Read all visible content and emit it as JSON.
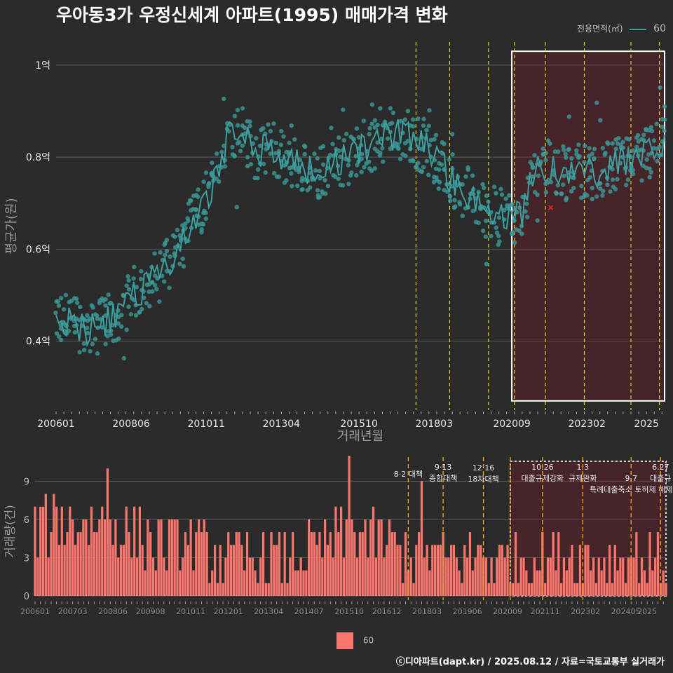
{
  "chart_data": [
    {
      "type": "line",
      "title": "우아동3가 우정신세계 아파트(1995) 매매가격 변화",
      "xlabel": "거래년월",
      "ylabel": "평균가(원)",
      "legend": {
        "title": "전용면적(㎡)",
        "entries": [
          "60"
        ],
        "position": "top-right"
      },
      "x_tick_labels": [
        "200601",
        "200806",
        "201011",
        "201304",
        "201510",
        "201803",
        "202009",
        "202302",
        "2025"
      ],
      "y_tick_labels": [
        "0.4억",
        "0.6억",
        "0.8억",
        "1억"
      ],
      "ylim": [
        0.25,
        1.05
      ],
      "series": [
        {
          "name": "60",
          "color": "#3ba0a0",
          "anchors": [
            [
              "200601",
              0.44
            ],
            [
              "200607",
              0.45
            ],
            [
              "200701",
              0.42
            ],
            [
              "200707",
              0.44
            ],
            [
              "200801",
              0.46
            ],
            [
              "200806",
              0.5
            ],
            [
              "200812",
              0.52
            ],
            [
              "200906",
              0.55
            ],
            [
              "200912",
              0.6
            ],
            [
              "201006",
              0.66
            ],
            [
              "201011",
              0.71
            ],
            [
              "201104",
              0.78
            ],
            [
              "201108",
              0.86
            ],
            [
              "201112",
              0.86
            ],
            [
              "201206",
              0.81
            ],
            [
              "201212",
              0.82
            ],
            [
              "201306",
              0.8
            ],
            [
              "201312",
              0.78
            ],
            [
              "201406",
              0.76
            ],
            [
              "201412",
              0.79
            ],
            [
              "201506",
              0.8
            ],
            [
              "201512",
              0.82
            ],
            [
              "201606",
              0.84
            ],
            [
              "201612",
              0.85
            ],
            [
              "201706",
              0.84
            ],
            [
              "201712",
              0.82
            ],
            [
              "201806",
              0.78
            ],
            [
              "201812",
              0.74
            ],
            [
              "201906",
              0.71
            ],
            [
              "201912",
              0.68
            ],
            [
              "202006",
              0.67
            ],
            [
              "202009",
              0.67
            ],
            [
              "202101",
              0.68
            ],
            [
              "202106",
              0.77
            ],
            [
              "202112",
              0.78
            ],
            [
              "202206",
              0.76
            ],
            [
              "202212",
              0.77
            ],
            [
              "202306",
              0.76
            ],
            [
              "202312",
              0.78
            ],
            [
              "202406",
              0.79
            ],
            [
              "202412",
              0.8
            ],
            [
              "202506",
              0.82
            ],
            [
              "202508",
              0.86
            ]
          ]
        }
      ],
      "highlight": {
        "from": "202009",
        "to": "202508",
        "ymin": 0.27,
        "ymax": 1.03
      },
      "marker_point": {
        "x": "202112",
        "y": 0.69
      },
      "policy_lines": [
        "201708",
        "201809",
        "201912",
        "202010",
        "202110",
        "202301",
        "202407",
        "202506"
      ]
    },
    {
      "type": "bar",
      "ylabel": "거래량(건)",
      "x_tick_labels": [
        "200601",
        "200703",
        "200806",
        "200908",
        "201011",
        "201201",
        "201304",
        "201407",
        "201510",
        "201612",
        "201803",
        "201906",
        "202009",
        "202111",
        "202302",
        "202405",
        "2025"
      ],
      "y_tick_labels": [
        "0",
        "3",
        "6",
        "9"
      ],
      "ylim": [
        0,
        11
      ],
      "color": "#f8766d",
      "legend": [
        "60"
      ],
      "anchors": [
        [
          "200601",
          5
        ],
        [
          "200701",
          6
        ],
        [
          "200801",
          6
        ],
        [
          "200901",
          5
        ],
        [
          "201001",
          4
        ],
        [
          "201101",
          4
        ],
        [
          "201201",
          3
        ],
        [
          "201301",
          3
        ],
        [
          "201401",
          3
        ],
        [
          "201501",
          4
        ],
        [
          "201601",
          5
        ],
        [
          "201701",
          4
        ],
        [
          "201801",
          3
        ],
        [
          "201901",
          3
        ],
        [
          "202001",
          3
        ],
        [
          "202101",
          3
        ],
        [
          "202201",
          3
        ],
        [
          "202301",
          3
        ],
        [
          "202401",
          3
        ],
        [
          "202508",
          3
        ]
      ],
      "peaks": [
        [
          "200804",
          10
        ],
        [
          "201510",
          11
        ],
        [
          "201801",
          9
        ]
      ],
      "policy_lines": [
        {
          "x": "201708",
          "label": "8·2 대책"
        },
        {
          "x": "201809",
          "label": "9·13\n종합대책"
        },
        {
          "x": "201912",
          "label": "12·16\n18차대책"
        },
        {
          "x": "202010",
          "label": ""
        },
        {
          "x": "202110",
          "label": "10.26\n대출규제강화"
        },
        {
          "x": "202301",
          "label": "1.3\n규제완화"
        },
        {
          "x": "202407",
          "label": "9.7\n특례대출축소 토허제 해제"
        },
        {
          "x": "202506",
          "label": "6.27\n대출규"
        }
      ],
      "highlight": {
        "from": "202010",
        "to": "202508"
      }
    }
  ],
  "footer": "ⓒ디아파트(dapt.kr) / 2025.08.12 / 자료=국토교통부 실거래가"
}
